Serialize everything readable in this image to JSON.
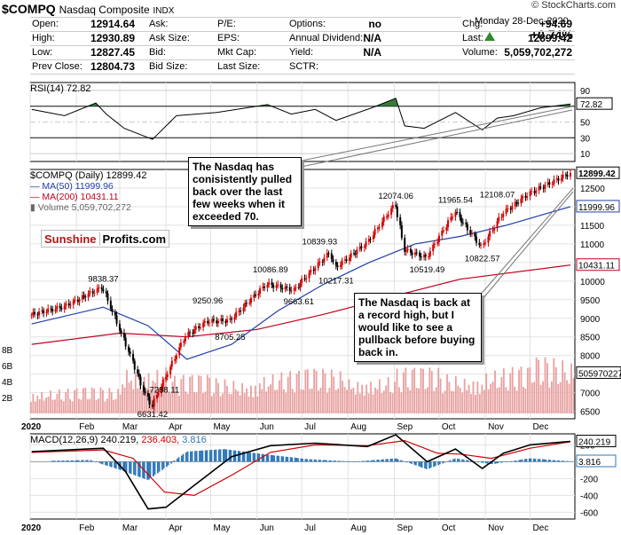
{
  "header": {
    "symbol": "$COMPQ",
    "name": "Nasdaq Composite",
    "exchange": "INDX",
    "watermark": "© StockCharts.com",
    "date": "Monday   28-Dec-2020",
    "change_pct": "+0.74%",
    "rows": [
      [
        {
          "l": "Open:",
          "v": "12914.64"
        },
        {
          "l": "Ask:",
          "v": ""
        },
        {
          "l": "P/E:",
          "v": ""
        },
        {
          "l": "Options:",
          "v": "no"
        },
        {
          "l": "Chg:",
          "v": "+94.69"
        }
      ],
      [
        {
          "l": "High:",
          "v": "12930.89"
        },
        {
          "l": "Ask Size:",
          "v": ""
        },
        {
          "l": "EPS:",
          "v": ""
        },
        {
          "l": "Annual Dividend:",
          "v": "N/A"
        },
        {
          "l": "Last:",
          "v": "12899.42"
        }
      ],
      [
        {
          "l": "Low:",
          "v": "12827.45"
        },
        {
          "l": "Bid:",
          "v": ""
        },
        {
          "l": "Mkt Cap:",
          "v": ""
        },
        {
          "l": "Yield:",
          "v": "N/A"
        },
        {
          "l": "Volume:",
          "v": "5,059,702,272"
        }
      ],
      [
        {
          "l": "Prev Close:",
          "v": "12804.73"
        },
        {
          "l": "Bid Size:",
          "v": ""
        },
        {
          "l": "Last Size:",
          "v": ""
        },
        {
          "l": "SCTR:",
          "v": ""
        },
        {
          "l": "",
          "v": ""
        }
      ]
    ]
  },
  "rsi_label": "RSI(14) 72.82",
  "price_legend": [
    "$COMPQ (Daily) 12899.42",
    "MA(50) 11999.96",
    "MA(200) 10431.11",
    "Volume 5,059,702,272"
  ],
  "logo": {
    "part1": "Sunshine",
    "part2": "Profits.com"
  },
  "macd_label": {
    "main": "MACD(12,26,9) 240.219,",
    "signal": "236.403,",
    "hist": "3.816"
  },
  "annotations": [
    "The Nasdaq has conisistently pulled back over the last few weeks when it exceeded 70.",
    "The Nasdaq is back at a record high, but I would like to see a pullback before buying back in."
  ],
  "colors": {
    "up": "#d10000",
    "down": "#000000",
    "ma50": "#1f3fa6",
    "ma200": "#c0001d",
    "rsi_fill": "#3c7a3c",
    "macd": "#000000",
    "signal": "#d10000",
    "hist": "#2f78b8",
    "volume": "#e8a0a0"
  },
  "chart_data": [
    {
      "type": "line",
      "title": "RSI(14) 72.82",
      "ylim": [
        0,
        100
      ],
      "y_ticks": [
        10,
        30,
        50,
        70,
        90
      ],
      "last_value": 72.82,
      "x": [
        "2020-01-02",
        "2020-01-24",
        "2020-02-14",
        "2020-02-21",
        "2020-03-04",
        "2020-03-23",
        "2020-04-08",
        "2020-05-05",
        "2020-06-08",
        "2020-06-24",
        "2020-07-10",
        "2020-07-24",
        "2020-08-17",
        "2020-09-02",
        "2020-09-08",
        "2020-09-21",
        "2020-10-12",
        "2020-10-30",
        "2020-11-09",
        "2020-11-20",
        "2020-12-08",
        "2020-12-28"
      ],
      "values": [
        66,
        58,
        74,
        60,
        42,
        28,
        58,
        62,
        72,
        60,
        66,
        52,
        68,
        80,
        45,
        42,
        62,
        40,
        55,
        58,
        68,
        72.82
      ]
    },
    {
      "type": "line",
      "title": "$COMPQ (Daily) 12899.42",
      "y_ticks": [
        6500,
        7000,
        7500,
        8000,
        8500,
        9000,
        9500,
        10000,
        10500,
        11000,
        11500,
        12000,
        12500
      ],
      "ylim": [
        6300,
        13000
      ],
      "x_ticks": [
        "2020",
        "Feb",
        "Mar",
        "Apr",
        "May",
        "Jun",
        "Jul",
        "Aug",
        "Sep",
        "Oct",
        "Nov",
        "Dec"
      ],
      "series": [
        {
          "name": "$COMPQ",
          "x": [
            "2020-01-02",
            "2020-01-24",
            "2020-02-19",
            "2020-03-09",
            "2020-03-16",
            "2020-03-23",
            "2020-04-14",
            "2020-04-29",
            "2020-05-14",
            "2020-06-08",
            "2020-06-26",
            "2020-07-20",
            "2020-07-24",
            "2020-08-14",
            "2020-09-02",
            "2020-09-08",
            "2020-09-23",
            "2020-10-12",
            "2020-10-30",
            "2020-11-13",
            "2020-12-01",
            "2020-12-28"
          ],
          "values": [
            9092,
            9314,
            9838.37,
            7950,
            7210,
            6631.42,
            8515,
            8914,
            8943,
            9924,
            9757,
            10767,
            10363,
            11019,
            12074.06,
            10848,
            10632,
            11876,
            10911,
            11829,
            12355,
            12899.42
          ]
        },
        {
          "name": "MA(50)",
          "x": [
            "2020-01-02",
            "2020-02-19",
            "2020-03-20",
            "2020-04-15",
            "2020-05-15",
            "2020-06-15",
            "2020-07-15",
            "2020-08-15",
            "2020-09-15",
            "2020-10-15",
            "2020-11-15",
            "2020-12-28"
          ],
          "values": [
            8850,
            9300,
            8800,
            7900,
            8300,
            9200,
            9900,
            10500,
            11000,
            11200,
            11500,
            11999.96
          ]
        },
        {
          "name": "MA(200)",
          "x": [
            "2020-01-02",
            "2020-03-01",
            "2020-04-15",
            "2020-06-01",
            "2020-07-15",
            "2020-09-01",
            "2020-10-15",
            "2020-12-28"
          ],
          "values": [
            8300,
            8600,
            8500,
            8700,
            9100,
            9600,
            10050,
            10431.11
          ]
        }
      ],
      "annotations_on_chart": [
        {
          "x": "2020-02-19",
          "label": "9838.37"
        },
        {
          "x": "2020-03-23",
          "label": "6631.42"
        },
        {
          "x": "2020-03-31",
          "label": "7288.11"
        },
        {
          "x": "2020-04-29",
          "label": "9250.96"
        },
        {
          "x": "2020-05-14",
          "label": "8705.25"
        },
        {
          "x": "2020-06-10",
          "label": "10086.89"
        },
        {
          "x": "2020-06-29",
          "label": "9663.61"
        },
        {
          "x": "2020-07-13",
          "label": "10839.93"
        },
        {
          "x": "2020-07-24",
          "label": "10217.31"
        },
        {
          "x": "2020-09-02",
          "label": "12074.06"
        },
        {
          "x": "2020-09-23",
          "label": "10519.49"
        },
        {
          "x": "2020-10-12",
          "label": "11965.54"
        },
        {
          "x": "2020-10-30",
          "label": "10822.57"
        },
        {
          "x": "2020-11-09",
          "label": "12108.07"
        }
      ],
      "right_labels": [
        "12899.42",
        "11999.96",
        "10431.11"
      ]
    },
    {
      "type": "bar",
      "title": "Volume 5,059,702,272",
      "y_ticks": [
        "2B",
        "4B",
        "6B",
        "8B"
      ],
      "last_value": 5059702272,
      "right_label": "5059702272",
      "x": [
        "Jan",
        "Feb",
        "Mar",
        "Apr",
        "May",
        "Jun",
        "Jul",
        "Aug",
        "Sep",
        "Oct",
        "Nov",
        "Dec"
      ],
      "values_billions": [
        2.4,
        2.5,
        4.7,
        3.7,
        3.4,
        4.1,
        4.3,
        3.7,
        4.4,
        3.9,
        4.5,
        5.4
      ]
    },
    {
      "type": "line",
      "title": "MACD(12,26,9) 240.219, 236.403, 3.816",
      "y_ticks": [
        -600,
        -400,
        -200,
        0,
        200
      ],
      "ylim": [
        -680,
        330
      ],
      "x_ticks": [
        "2020",
        "Feb",
        "Mar",
        "Apr",
        "May",
        "Jun",
        "Jul",
        "Aug",
        "Sep",
        "Oct",
        "Nov",
        "Dec"
      ],
      "series": [
        {
          "name": "MACD(12,26,9)",
          "x": [
            "2020-01-02",
            "2020-02-19",
            "2020-03-05",
            "2020-03-20",
            "2020-04-01",
            "2020-04-20",
            "2020-05-15",
            "2020-06-10",
            "2020-07-10",
            "2020-08-14",
            "2020-09-02",
            "2020-09-23",
            "2020-10-12",
            "2020-10-30",
            "2020-11-13",
            "2020-12-01",
            "2020-12-28"
          ],
          "values": [
            120,
            160,
            -120,
            -560,
            -540,
            -280,
            60,
            190,
            220,
            180,
            320,
            0,
            150,
            -80,
            100,
            200,
            240.219
          ]
        },
        {
          "name": "signal",
          "x": [
            "2020-01-02",
            "2020-02-19",
            "2020-03-10",
            "2020-03-31",
            "2020-04-20",
            "2020-05-15",
            "2020-06-10",
            "2020-07-10",
            "2020-08-14",
            "2020-09-08",
            "2020-09-30",
            "2020-10-15",
            "2020-11-05",
            "2020-12-01",
            "2020-12-28"
          ],
          "values": [
            110,
            140,
            40,
            -360,
            -400,
            -160,
            110,
            200,
            190,
            250,
            100,
            90,
            40,
            160,
            236.403
          ]
        },
        {
          "name": "histogram",
          "x": [
            "2020-01-15",
            "2020-02-10",
            "2020-03-05",
            "2020-03-20",
            "2020-04-15",
            "2020-05-10",
            "2020-06-05",
            "2020-07-05",
            "2020-08-05",
            "2020-09-02",
            "2020-09-23",
            "2020-10-12",
            "2020-11-05",
            "2020-12-01",
            "2020-12-28"
          ],
          "values": [
            10,
            20,
            -120,
            -220,
            120,
            150,
            90,
            30,
            0,
            40,
            -90,
            40,
            -30,
            40,
            3.816
          ]
        }
      ],
      "right_labels": [
        "240.219",
        "3.816"
      ]
    }
  ]
}
